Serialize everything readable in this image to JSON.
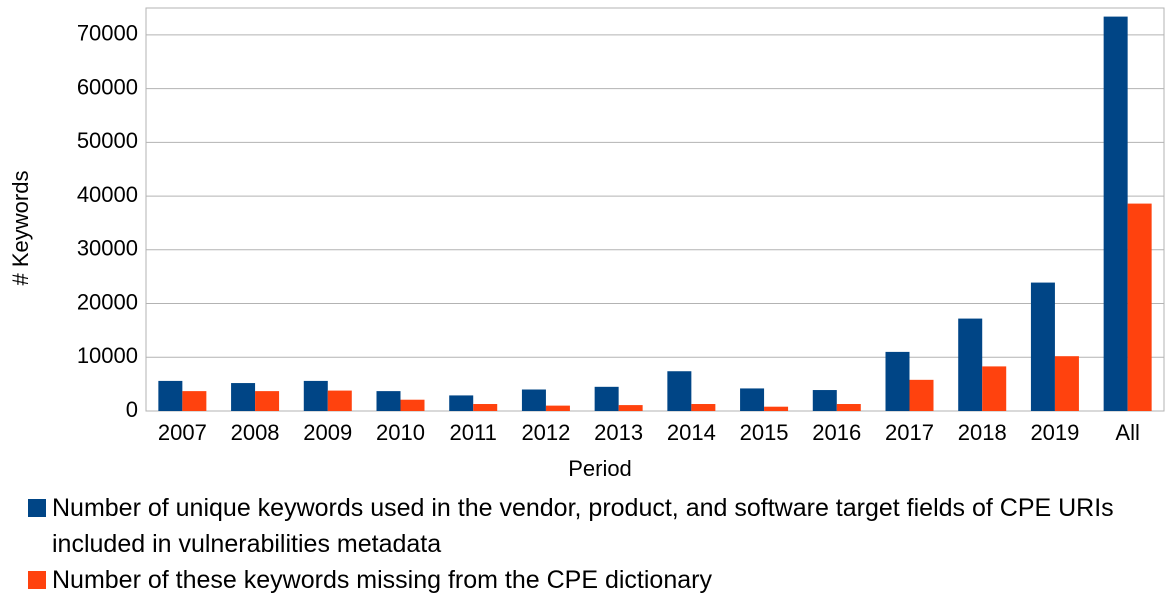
{
  "chart_data": {
    "type": "bar",
    "categories": [
      "2007",
      "2008",
      "2009",
      "2010",
      "2011",
      "2012",
      "2013",
      "2014",
      "2015",
      "2016",
      "2017",
      "2018",
      "2019",
      "All"
    ],
    "series": [
      {
        "name": "Number of unique keywords used in the vendor, product, and software target fields of CPE URIs included in vulnerabilities metadata",
        "color": "#004586",
        "values": [
          5600,
          5200,
          5600,
          3700,
          2900,
          4000,
          4500,
          7400,
          4200,
          3900,
          11000,
          17200,
          23900,
          73400
        ]
      },
      {
        "name": "Number of these keywords missing from the CPE dictionary",
        "color": "#ff420e",
        "values": [
          3700,
          3700,
          3800,
          2100,
          1300,
          1000,
          1100,
          1300,
          800,
          1300,
          5800,
          8300,
          10200,
          38600
        ]
      }
    ],
    "xlabel": "Period",
    "ylabel": "# Keywords",
    "ylim": [
      0,
      75000
    ],
    "yticks": [
      0,
      10000,
      20000,
      30000,
      40000,
      50000,
      60000,
      70000
    ],
    "grid": true
  }
}
